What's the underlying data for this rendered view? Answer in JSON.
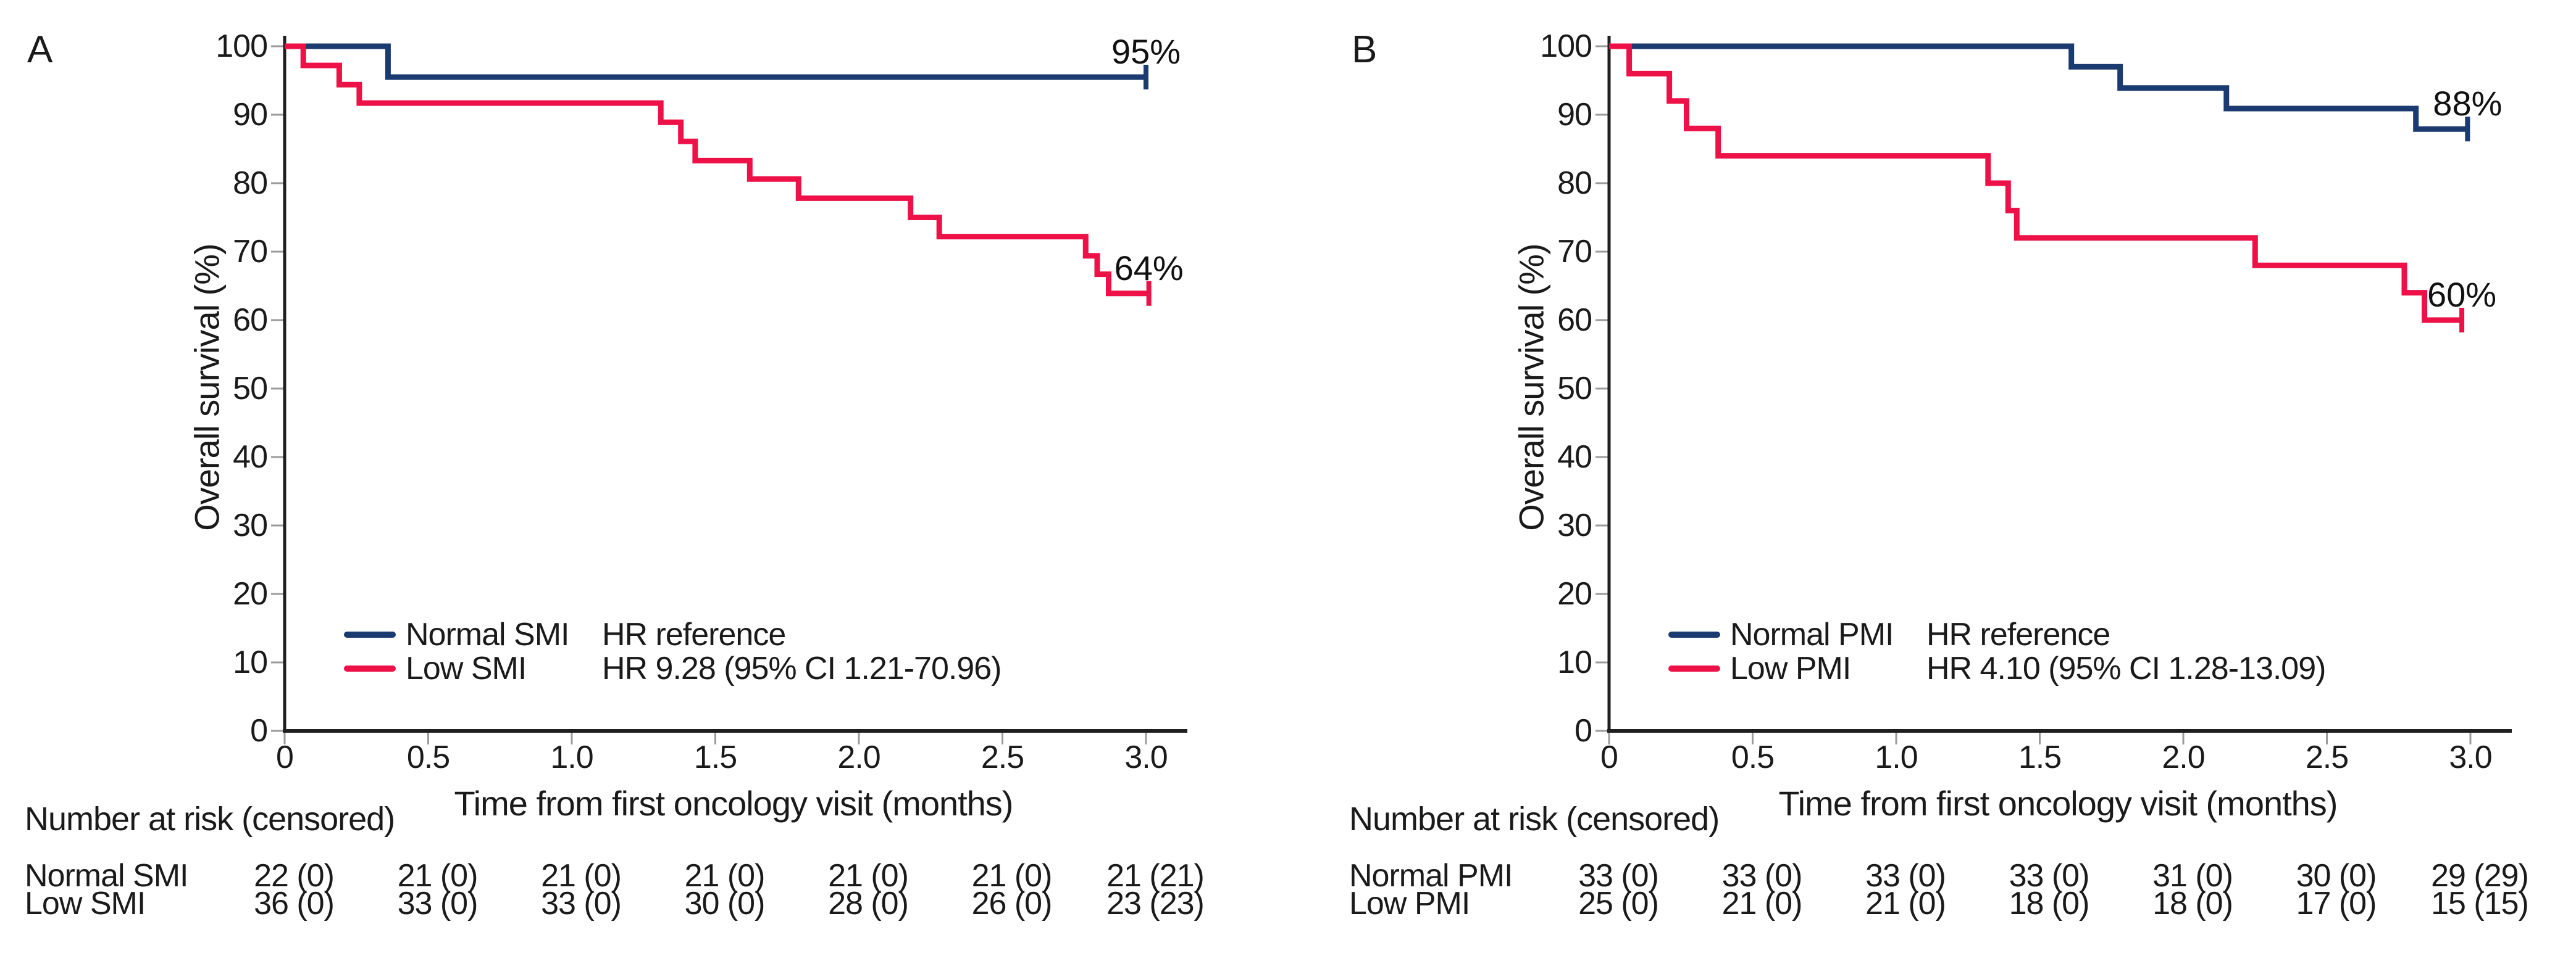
{
  "figure": {
    "background": "#ffffff",
    "axis_color": "#1f1f1f",
    "tick_color": "#9b9b9b",
    "text_color": "#1a1a1a"
  },
  "chart_data": [
    {
      "panel": "A",
      "type": "line",
      "subtype": "kaplan_meier_step",
      "title": "",
      "xlabel": "Time from first oncology visit (months)",
      "ylabel": "Overall survival (%)",
      "xlim": [
        0,
        3.0
      ],
      "ylim": [
        0,
        100
      ],
      "xticks": [
        "0",
        "0.5",
        "1.0",
        "1.5",
        "2.0",
        "2.5",
        "3.0"
      ],
      "yticks": [
        100,
        90,
        80,
        70,
        60,
        50,
        40,
        30,
        20,
        10,
        0
      ],
      "grid": false,
      "legend_position": "lower-left",
      "series": [
        {
          "name": "Normal SMI",
          "hr_label": "HR reference",
          "color": "#1a3a70",
          "end_label": "95%",
          "points": [
            [
              0,
              100
            ],
            [
              0.36,
              100
            ],
            [
              0.36,
              95.5
            ],
            [
              3.0,
              95.5
            ]
          ],
          "censor_tick": [
            3.0,
            95.5
          ]
        },
        {
          "name": "Low SMI",
          "hr_label": "HR 9.28 (95% CI 1.21-70.96)",
          "color": "#ee1148",
          "end_label": "64%",
          "points": [
            [
              0,
              100
            ],
            [
              0.065,
              100
            ],
            [
              0.065,
              97.2
            ],
            [
              0.19,
              97.2
            ],
            [
              0.19,
              94.4
            ],
            [
              0.26,
              94.4
            ],
            [
              0.26,
              91.7
            ],
            [
              1.31,
              91.7
            ],
            [
              1.31,
              88.9
            ],
            [
              1.38,
              88.9
            ],
            [
              1.38,
              86.1
            ],
            [
              1.43,
              86.1
            ],
            [
              1.43,
              83.3
            ],
            [
              1.62,
              83.3
            ],
            [
              1.62,
              80.6
            ],
            [
              1.79,
              80.6
            ],
            [
              1.79,
              77.8
            ],
            [
              2.18,
              77.8
            ],
            [
              2.18,
              75.0
            ],
            [
              2.28,
              75.0
            ],
            [
              2.28,
              72.2
            ],
            [
              2.79,
              72.2
            ],
            [
              2.79,
              69.4
            ],
            [
              2.83,
              69.4
            ],
            [
              2.83,
              66.7
            ],
            [
              2.87,
              66.7
            ],
            [
              2.87,
              63.9
            ],
            [
              3.01,
              63.9
            ]
          ],
          "censor_tick": [
            3.01,
            63.9
          ]
        }
      ],
      "risk_table": {
        "header": "Number at risk (censored)",
        "time_points": [
          "0",
          "0.5",
          "1.0",
          "1.5",
          "2.0",
          "2.5",
          "3.0"
        ],
        "rows": [
          {
            "label": "Normal SMI",
            "values": [
              "22 (0)",
              "21 (0)",
              "21 (0)",
              "21 (0)",
              "21 (0)",
              "21 (0)",
              "21 (21)"
            ]
          },
          {
            "label": "Low SMI",
            "values": [
              "36 (0)",
              "33 (0)",
              "33 (0)",
              "30 (0)",
              "28 (0)",
              "26 (0)",
              "23 (23)"
            ]
          }
        ]
      }
    },
    {
      "panel": "B",
      "type": "line",
      "subtype": "kaplan_meier_step",
      "title": "",
      "xlabel": "Time from first oncology visit (months)",
      "ylabel": "Overall survival (%)",
      "xlim": [
        0,
        3.0
      ],
      "ylim": [
        0,
        100
      ],
      "xticks": [
        "0",
        "0.5",
        "1.0",
        "1.5",
        "2.0",
        "2.5",
        "3.0"
      ],
      "yticks": [
        100,
        90,
        80,
        70,
        60,
        50,
        40,
        30,
        20,
        10,
        0
      ],
      "grid": false,
      "legend_position": "lower-left",
      "series": [
        {
          "name": "Normal PMI",
          "hr_label": "HR reference",
          "color": "#1a3a70",
          "end_label": "88%",
          "points": [
            [
              0,
              100
            ],
            [
              1.61,
              100
            ],
            [
              1.61,
              97.0
            ],
            [
              1.78,
              97.0
            ],
            [
              1.78,
              93.9
            ],
            [
              2.15,
              93.9
            ],
            [
              2.15,
              90.9
            ],
            [
              2.81,
              90.9
            ],
            [
              2.81,
              87.9
            ],
            [
              2.99,
              87.9
            ]
          ],
          "censor_tick": [
            2.99,
            87.9
          ]
        },
        {
          "name": "Low PMI",
          "hr_label": "HR 4.10 (95% CI 1.28-13.09)",
          "color": "#ee1148",
          "end_label": "60%",
          "points": [
            [
              0,
              100
            ],
            [
              0.07,
              100
            ],
            [
              0.07,
              96
            ],
            [
              0.21,
              96
            ],
            [
              0.21,
              92
            ],
            [
              0.27,
              92
            ],
            [
              0.27,
              88
            ],
            [
              0.38,
              88
            ],
            [
              0.38,
              84
            ],
            [
              1.32,
              84
            ],
            [
              1.32,
              80
            ],
            [
              1.39,
              80
            ],
            [
              1.39,
              76
            ],
            [
              1.42,
              76
            ],
            [
              1.42,
              72
            ],
            [
              2.25,
              72
            ],
            [
              2.25,
              68
            ],
            [
              2.77,
              68
            ],
            [
              2.77,
              64
            ],
            [
              2.84,
              64
            ],
            [
              2.84,
              60
            ],
            [
              2.97,
              60
            ]
          ],
          "censor_tick": [
            2.97,
            60
          ]
        }
      ],
      "risk_table": {
        "header": "Number at risk (censored)",
        "time_points": [
          "0",
          "0.5",
          "1.0",
          "1.5",
          "2.0",
          "2.5",
          "3.0"
        ],
        "rows": [
          {
            "label": "Normal PMI",
            "values": [
              "33 (0)",
              "33 (0)",
              "33 (0)",
              "33 (0)",
              "31 (0)",
              "30 (0)",
              "29 (29)"
            ]
          },
          {
            "label": "Low PMI",
            "values": [
              "25 (0)",
              "21 (0)",
              "21 (0)",
              "18 (0)",
              "18 (0)",
              "17 (0)",
              "15 (15)"
            ]
          }
        ]
      }
    }
  ]
}
